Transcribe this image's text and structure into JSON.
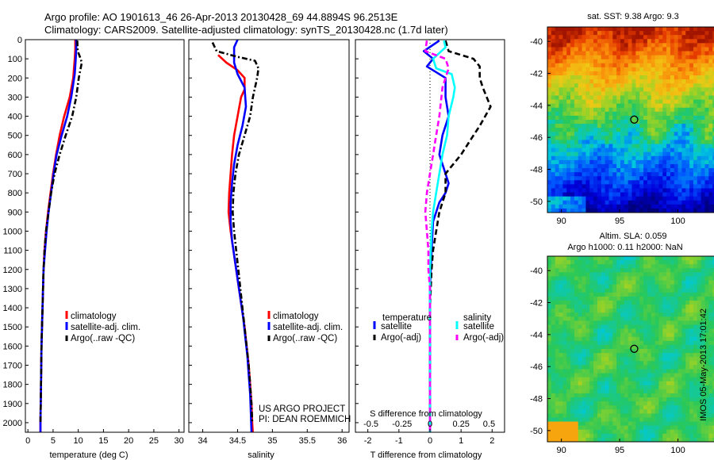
{
  "header": {
    "line1": "Argo profile: AO 1901613_46 26-Apr-2013 20130428_69 44.8894S 96.2513E",
    "line2": "Climatology: CARS2009. Satellite-adjusted climatology: synTS_20130428.nc (1.7d later)"
  },
  "colors": {
    "climatology": "#ff0000",
    "satellite": "#0000ff",
    "argo": "#000000",
    "salinity_satellite": "#00ffff",
    "salinity_argo": "#ff00ff"
  },
  "chart_data": [
    {
      "id": "temperature-profile",
      "type": "line",
      "xlabel": "temperature (deg C)",
      "ylabel": "",
      "xlim": [
        -0.5,
        31
      ],
      "ylim": [
        0,
        2050
      ],
      "y_reversed": true,
      "xticks": [
        0,
        5,
        10,
        15,
        20,
        25,
        30
      ],
      "xtick_labels": [
        "0",
        "5",
        "10",
        "15",
        "20",
        "25",
        "30"
      ],
      "yticks": [
        0,
        100,
        200,
        300,
        400,
        500,
        600,
        700,
        800,
        900,
        1000,
        1100,
        1200,
        1300,
        1400,
        1500,
        1600,
        1700,
        1800,
        1900,
        2000
      ],
      "ytick_labels": [
        "0",
        "100",
        "200",
        "300",
        "400",
        "500",
        "600",
        "700",
        "800",
        "900",
        "1000",
        "1100",
        "1200",
        "1300",
        "1400",
        "1500",
        "1600",
        "1700",
        "1800",
        "1900",
        "2000"
      ],
      "legend": {
        "placement": "lower-middle",
        "entries": [
          "climatology",
          "satellite-adj. clim.",
          "Argo(..raw -QC)"
        ]
      },
      "series": [
        {
          "name": "climatology",
          "style": "solid",
          "colorKey": "climatology",
          "points": [
            [
              9.4,
              0
            ],
            [
              9.4,
              50
            ],
            [
              9.3,
              100
            ],
            [
              9.0,
              200
            ],
            [
              8.3,
              300
            ],
            [
              7.2,
              400
            ],
            [
              6.3,
              500
            ],
            [
              5.6,
              600
            ],
            [
              5.0,
              700
            ],
            [
              4.5,
              800
            ],
            [
              4.0,
              900
            ],
            [
              3.6,
              1000
            ],
            [
              3.3,
              1100
            ],
            [
              3.1,
              1200
            ],
            [
              2.9,
              1400
            ],
            [
              2.7,
              1600
            ],
            [
              2.6,
              1800
            ],
            [
              2.5,
              2000
            ],
            [
              2.5,
              2060
            ]
          ]
        },
        {
          "name": "satellite-adj. clim.",
          "style": "solid",
          "colorKey": "satellite",
          "points": [
            [
              9.6,
              0
            ],
            [
              9.6,
              50
            ],
            [
              9.5,
              100
            ],
            [
              9.3,
              180
            ],
            [
              8.6,
              300
            ],
            [
              7.8,
              400
            ],
            [
              6.7,
              500
            ],
            [
              5.7,
              600
            ],
            [
              5.1,
              700
            ],
            [
              4.6,
              800
            ],
            [
              4.1,
              900
            ],
            [
              3.7,
              1000
            ],
            [
              3.4,
              1100
            ],
            [
              3.1,
              1200
            ],
            [
              2.9,
              1400
            ],
            [
              2.7,
              1600
            ],
            [
              2.6,
              1800
            ],
            [
              2.5,
              2000
            ],
            [
              2.5,
              2050
            ]
          ]
        },
        {
          "name": "Argo(..raw -QC)",
          "style": "dashdot",
          "colorKey": "argo",
          "points": [
            [
              9.8,
              5
            ],
            [
              9.9,
              60
            ],
            [
              10.4,
              95
            ],
            [
              10.7,
              120
            ],
            [
              10.1,
              200
            ],
            [
              9.6,
              300
            ],
            [
              8.8,
              400
            ],
            [
              7.5,
              500
            ],
            [
              6.3,
              600
            ],
            [
              5.3,
              700
            ],
            [
              4.6,
              800
            ],
            [
              4.1,
              900
            ],
            [
              3.6,
              1000
            ],
            [
              3.3,
              1100
            ],
            [
              3.1,
              1200
            ],
            [
              2.9,
              1400
            ],
            [
              2.7,
              1600
            ],
            [
              2.6,
              1800
            ],
            [
              2.5,
              2000
            ]
          ]
        }
      ]
    },
    {
      "id": "salinity-profile",
      "type": "line",
      "xlabel": "salinity",
      "ylabel": "",
      "xlim": [
        33.8,
        36.1
      ],
      "ylim": [
        0,
        2050
      ],
      "y_reversed": true,
      "xticks": [
        34,
        34.5,
        35,
        35.5,
        36
      ],
      "xtick_labels": [
        "34",
        "34.5",
        "35",
        "35.5",
        "36"
      ],
      "legend": {
        "placement": "lower-right",
        "entries": [
          "climatology",
          "satellite-adj. clim.",
          "Argo(..raw -QC)"
        ]
      },
      "annotations": [
        "US ARGO PROJECT",
        "PI: DEAN ROEMMICH"
      ],
      "series": [
        {
          "name": "climatology",
          "style": "solid",
          "colorKey": "climatology",
          "points": [
            [
              34.22,
              80
            ],
            [
              34.34,
              120
            ],
            [
              34.5,
              160
            ],
            [
              34.6,
              200
            ],
            [
              34.6,
              260
            ],
            [
              34.55,
              300
            ],
            [
              34.5,
              400
            ],
            [
              34.45,
              500
            ],
            [
              34.42,
              600
            ],
            [
              34.4,
              700
            ],
            [
              34.38,
              800
            ],
            [
              34.37,
              900
            ],
            [
              34.4,
              1000
            ],
            [
              34.44,
              1100
            ],
            [
              34.48,
              1200
            ],
            [
              34.52,
              1300
            ],
            [
              34.56,
              1400
            ],
            [
              34.6,
              1500
            ],
            [
              34.63,
              1600
            ],
            [
              34.66,
              1700
            ],
            [
              34.68,
              1800
            ],
            [
              34.7,
              1900
            ],
            [
              34.71,
              2000
            ],
            [
              34.72,
              2060
            ]
          ]
        },
        {
          "name": "satellite-adj. clim.",
          "style": "solid",
          "colorKey": "satellite",
          "points": [
            [
              34.5,
              0
            ],
            [
              34.45,
              40
            ],
            [
              34.45,
              120
            ],
            [
              34.5,
              180
            ],
            [
              34.6,
              250
            ],
            [
              34.62,
              350
            ],
            [
              34.57,
              450
            ],
            [
              34.5,
              550
            ],
            [
              34.45,
              650
            ],
            [
              34.42,
              750
            ],
            [
              34.4,
              850
            ],
            [
              34.4,
              950
            ],
            [
              34.42,
              1050
            ],
            [
              34.46,
              1150
            ],
            [
              34.5,
              1250
            ],
            [
              34.54,
              1350
            ],
            [
              34.58,
              1450
            ],
            [
              34.61,
              1550
            ],
            [
              34.64,
              1650
            ],
            [
              34.66,
              1750
            ],
            [
              34.68,
              1850
            ],
            [
              34.69,
              1950
            ],
            [
              34.7,
              2050
            ]
          ]
        },
        {
          "name": "Argo(..raw -QC)",
          "style": "dashdot",
          "colorKey": "argo",
          "points": [
            [
              34.14,
              15
            ],
            [
              34.2,
              60
            ],
            [
              34.5,
              90
            ],
            [
              34.75,
              110
            ],
            [
              34.8,
              150
            ],
            [
              34.78,
              200
            ],
            [
              34.72,
              300
            ],
            [
              34.68,
              400
            ],
            [
              34.6,
              500
            ],
            [
              34.52,
              600
            ],
            [
              34.47,
              700
            ],
            [
              34.44,
              800
            ],
            [
              34.43,
              900
            ],
            [
              34.45,
              1000
            ],
            [
              34.48,
              1100
            ],
            [
              34.51,
              1200
            ],
            [
              34.54,
              1300
            ],
            [
              34.57,
              1400
            ],
            [
              34.6,
              1500
            ],
            [
              34.63,
              1600
            ],
            [
              34.66,
              1700
            ],
            [
              34.68,
              1800
            ],
            [
              34.7,
              1900
            ],
            [
              34.71,
              2000
            ]
          ]
        }
      ]
    },
    {
      "id": "difference-profile",
      "type": "line",
      "xlabel": "T difference from climatology",
      "title_bottom": "S difference from climatology",
      "xlim": [
        -2.4,
        2.4
      ],
      "ylim": [
        0,
        2050
      ],
      "y_reversed": true,
      "zero_line": true,
      "xticks_T": [
        -2,
        -1,
        0,
        1,
        2
      ],
      "xtick_labels_T": [
        "-2",
        "-1",
        "0",
        "1",
        "2"
      ],
      "xticks_S_positions_T": [
        -1.9,
        -0.9,
        0.0,
        1.0,
        1.9
      ],
      "xtick_labels_S": [
        "-0.5",
        "-0.25",
        "0",
        "0.25",
        "0.5"
      ],
      "legend": {
        "placement": "lower",
        "headers": [
          "temperature",
          "salinity"
        ],
        "entries": [
          "satellite",
          "Argo(-adj)",
          "satellite",
          "Argo(-adj)"
        ]
      },
      "series": [
        {
          "name": "satellite",
          "group": "temperature",
          "style": "solid",
          "colorKey": "satellite",
          "points": [
            [
              0.3,
              5
            ],
            [
              -0.2,
              60
            ],
            [
              0.1,
              100
            ],
            [
              -0.1,
              140
            ],
            [
              0.5,
              200
            ],
            [
              0.5,
              300
            ],
            [
              0.6,
              400
            ],
            [
              0.4,
              500
            ],
            [
              0.3,
              600
            ],
            [
              0.5,
              700
            ],
            [
              0.6,
              750
            ],
            [
              0.5,
              800
            ],
            [
              0.3,
              850
            ],
            [
              0.1,
              950
            ],
            [
              0.05,
              1100
            ],
            [
              0.0,
              1300
            ],
            [
              0.0,
              1600
            ],
            [
              0.0,
              2050
            ]
          ]
        },
        {
          "name": "Argo(-adj)",
          "group": "temperature",
          "style": "dashed",
          "colorKey": "argo",
          "points": [
            [
              0.5,
              5
            ],
            [
              0.6,
              60
            ],
            [
              1.4,
              100
            ],
            [
              1.6,
              140
            ],
            [
              1.6,
              200
            ],
            [
              1.7,
              250
            ],
            [
              1.95,
              350
            ],
            [
              1.6,
              450
            ],
            [
              1.4,
              500
            ],
            [
              1.0,
              600
            ],
            [
              0.5,
              700
            ],
            [
              0.5,
              800
            ],
            [
              0.4,
              850
            ],
            [
              0.3,
              900
            ],
            [
              0.2,
              1000
            ],
            [
              0.1,
              1100
            ],
            [
              0.05,
              1200
            ],
            [
              0.0,
              1400
            ],
            [
              0.0,
              1600
            ],
            [
              0.0,
              2050
            ]
          ]
        },
        {
          "name": "satellite",
          "group": "salinity",
          "style": "solid",
          "colorKey": "salinity_satellite",
          "points": [
            [
              0.45,
              5
            ],
            [
              0.5,
              40
            ],
            [
              0.1,
              100
            ],
            [
              0.2,
              150
            ],
            [
              0.7,
              180
            ],
            [
              0.8,
              250
            ],
            [
              0.75,
              300
            ],
            [
              0.6,
              400
            ],
            [
              0.55,
              500
            ],
            [
              0.4,
              600
            ],
            [
              0.3,
              700
            ],
            [
              0.2,
              800
            ],
            [
              0.1,
              900
            ],
            [
              0.05,
              1000
            ],
            [
              0.0,
              1200
            ],
            [
              0.0,
              1500
            ],
            [
              0.0,
              2050
            ]
          ]
        },
        {
          "name": "Argo(-adj)",
          "group": "salinity",
          "style": "dashed",
          "colorKey": "salinity_argo",
          "points": [
            [
              -0.1,
              5
            ],
            [
              -0.15,
              60
            ],
            [
              0.5,
              100
            ],
            [
              0.6,
              150
            ],
            [
              0.4,
              250
            ],
            [
              0.3,
              400
            ],
            [
              0.2,
              500
            ],
            [
              0.1,
              600
            ],
            [
              0.0,
              700
            ],
            [
              -0.1,
              800
            ],
            [
              -0.15,
              900
            ],
            [
              -0.1,
              1000
            ],
            [
              -0.05,
              1100
            ],
            [
              -0.05,
              1200
            ],
            [
              0.0,
              1300
            ],
            [
              0.0,
              1500
            ],
            [
              0.0,
              2050
            ]
          ]
        }
      ]
    },
    {
      "id": "sst-map",
      "type": "heatmap",
      "title": "sat. SST: 9.38  Argo: 9.3",
      "xlim": [
        88.8,
        103.3
      ],
      "ylim": [
        -50.7,
        -39.1
      ],
      "xticks": [
        90,
        95,
        100
      ],
      "xtick_labels": [
        "90",
        "95",
        "100"
      ],
      "yticks": [
        -40,
        -42,
        -44,
        -46,
        -48,
        -50
      ],
      "ytick_labels": [
        "-40",
        "-42",
        "-44",
        "-46",
        "-48",
        "-50"
      ],
      "marker": {
        "lon": 96.25,
        "lat": -44.89
      }
    },
    {
      "id": "sla-map",
      "type": "heatmap",
      "title": "Altim. SLA: 0.059",
      "subtitle": "Argo h1000: 0.11  h2000: NaN",
      "xlim": [
        88.8,
        103.3
      ],
      "ylim": [
        -50.7,
        -39.1
      ],
      "xticks": [
        90,
        95,
        100
      ],
      "xtick_labels": [
        "90",
        "95",
        "100"
      ],
      "yticks": [
        -40,
        -42,
        -44,
        -46,
        -48,
        -50
      ],
      "ytick_labels": [
        "-40",
        "-42",
        "-44",
        "-46",
        "-48",
        "-50"
      ],
      "marker": {
        "lon": 96.25,
        "lat": -44.89
      }
    }
  ],
  "side_label": "IMOS 05-May-2013 17:01:42"
}
